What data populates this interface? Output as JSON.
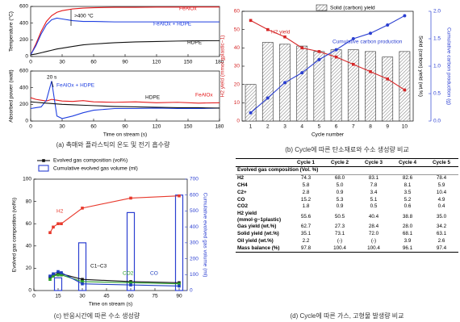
{
  "chart_data": [
    {
      "type": "line",
      "ylabel": "Temperature (°C)",
      "xlim": [
        0,
        180
      ],
      "xticks": [
        0,
        30,
        60,
        90,
        120,
        150,
        180
      ],
      "ylim": [
        0,
        600
      ],
      "yticks": [
        0,
        200,
        400,
        600
      ],
      "x": [
        0,
        5,
        10,
        15,
        20,
        25,
        30,
        40,
        50,
        60,
        80,
        100,
        120,
        140,
        160,
        180
      ],
      "series": [
        {
          "name": "FeAlOx",
          "color": "#e41a1c",
          "kind": "line",
          "values": [
            20,
            150,
            300,
            420,
            490,
            530,
            550,
            570,
            580,
            585,
            590,
            590,
            592,
            592,
            593,
            593
          ]
        },
        {
          "name": "FeAlOx + HDPE",
          "color": "#1f3fe0",
          "kind": "line",
          "values": [
            20,
            130,
            270,
            380,
            440,
            460,
            450,
            430,
            420,
            420,
            415,
            415,
            415,
            415,
            415,
            415
          ]
        },
        {
          "name": "HDPE",
          "color": "#111111",
          "kind": "line",
          "values": [
            20,
            30,
            45,
            60,
            75,
            90,
            100,
            120,
            140,
            150,
            165,
            175,
            180,
            185,
            188,
            190
          ]
        }
      ],
      "annotations": [
        ">400 °C"
      ]
    },
    {
      "type": "line",
      "ylabel": "Absorbed power (watt)",
      "xlabel": "Time on stream (s)",
      "xlim": [
        0,
        180
      ],
      "xticks": [
        0,
        30,
        60,
        90,
        120,
        150,
        180
      ],
      "ylim": [
        0,
        600
      ],
      "yticks": [
        0,
        200,
        400,
        600
      ],
      "x": [
        0,
        5,
        10,
        15,
        20,
        25,
        30,
        40,
        50,
        60,
        80,
        100,
        120,
        140,
        160,
        180
      ],
      "series": [
        {
          "name": "FeAlOx",
          "color": "#e41a1c",
          "kind": "line",
          "values": [
            280,
            260,
            250,
            240,
            260,
            250,
            240,
            235,
            245,
            230,
            225,
            230,
            220,
            225,
            215,
            220
          ]
        },
        {
          "name": "FeAlOx + HDPE",
          "color": "#1f3fe0",
          "kind": "line",
          "values": [
            150,
            160,
            170,
            250,
            480,
            60,
            30,
            60,
            100,
            130,
            150,
            150,
            155,
            150,
            150,
            155
          ]
        },
        {
          "name": "HDPE",
          "color": "#111111",
          "kind": "line",
          "values": [
            230,
            225,
            220,
            215,
            210,
            205,
            200,
            195,
            190,
            185,
            175,
            170,
            165,
            160,
            160,
            155
          ]
        }
      ],
      "annotations": [
        "20 s"
      ]
    },
    {
      "type": "combo",
      "ylabel": "H2 yield (mmol gplastic−1)",
      "y3label": "Solid (carbon) yield (wt.%)",
      "y2label": "Cumulative carbon production (g)",
      "xlabel": "Cycle number",
      "ycolor": "#d62728",
      "y2color": "#2b3fd1",
      "categories": [
        "1",
        "2",
        "3",
        "4",
        "5",
        "6",
        "7",
        "8",
        "9",
        "10"
      ],
      "ylim": [
        0,
        60
      ],
      "yticks": [
        0,
        10,
        20,
        30,
        40,
        50,
        60
      ],
      "y2lim": [
        0,
        2
      ],
      "y2ticks": [
        {
          "value": 0,
          "label": "0.0"
        },
        0.5,
        {
          "value": 1,
          "label": "1.0"
        },
        1.5,
        {
          "value": 2,
          "label": "2.0"
        }
      ],
      "series": [
        {
          "name": "Solid (carbon) yield",
          "color": "#333333",
          "kind": "bar",
          "hatch": true,
          "in_legend": true,
          "values": [
            20,
            43,
            42,
            41,
            38,
            39,
            39,
            38,
            35,
            38
          ]
        },
        {
          "name": "H2 yield",
          "color": "#d62728",
          "kind": "line",
          "marker": "square",
          "values": [
            55,
            50,
            46,
            40,
            38,
            35,
            31,
            27,
            23,
            17
          ]
        },
        {
          "name": "Cumulative carbon production",
          "color": "#2b3fd1",
          "kind": "line",
          "marker": "circle",
          "axis": "y2",
          "values": [
            0.15,
            0.42,
            0.7,
            0.88,
            1.12,
            1.3,
            1.5,
            1.6,
            1.75,
            1.92
          ]
        }
      ]
    },
    {
      "type": "combo",
      "ylabel": "Evolved gas composition (vol%)",
      "y2label": "Cumulative evolved gas volume (ml)",
      "xlabel": "Time on stream (s)",
      "y2color": "#2b3fd1",
      "legend_extra": "Evolved gas composition (vol%)",
      "xlim": [
        0,
        95
      ],
      "xticks": [
        0,
        15,
        30,
        45,
        60,
        75,
        90
      ],
      "ylim": [
        0,
        100
      ],
      "yticks": [
        0,
        20,
        40,
        60,
        80,
        100
      ],
      "y2lim": [
        0,
        700
      ],
      "y2ticks": [
        0,
        100,
        200,
        300,
        400,
        500,
        600,
        700
      ],
      "x": [
        10,
        12,
        15,
        17,
        30,
        60,
        90
      ],
      "series": [
        {
          "name": "Cumulative evolved gas volume (ml)",
          "color": "#2b3fd1",
          "kind": "bar",
          "axis": "y2",
          "in_legend": true,
          "x": [
            15,
            30,
            60,
            90
          ],
          "values": [
            80,
            300,
            490,
            600
          ]
        },
        {
          "name": "H2",
          "color": "#e8392c",
          "kind": "line",
          "marker": "square",
          "values": [
            52,
            57,
            60,
            60,
            74,
            83,
            85
          ]
        },
        {
          "name": "C1–C3",
          "color": "#111111",
          "kind": "line",
          "marker": "square",
          "values": [
            12,
            14,
            15,
            15,
            10,
            8,
            7
          ]
        },
        {
          "name": "CO2",
          "color": "#2ca02c",
          "kind": "line",
          "marker": "square",
          "values": [
            10,
            13,
            14,
            14,
            8,
            7,
            6
          ]
        },
        {
          "name": "CO",
          "color": "#1f3fbf",
          "kind": "line",
          "marker": "square",
          "values": [
            13,
            15,
            17,
            16,
            6,
            5,
            4
          ]
        }
      ]
    }
  ],
  "table": {
    "columns": [
      "Cycle 1",
      "Cycle 2",
      "Cycle 3",
      "Cycle 4",
      "Cycle 5"
    ],
    "section": "Evolved gas composition (Vol. %)",
    "rows": [
      [
        "H2",
        "74.3",
        "68.0",
        "83.1",
        "82.6",
        "78.4"
      ],
      [
        "CH4",
        "5.8",
        "5.0",
        "7.8",
        "8.1",
        "5.9"
      ],
      [
        "C2+",
        "2.8",
        "0.9",
        "3.4",
        "3.5",
        "10.4"
      ],
      [
        "CO",
        "15.2",
        "5.3",
        "5.1",
        "5.2",
        "4.9"
      ],
      [
        "CO2",
        "1.8",
        "0.9",
        "0.5",
        "0.6",
        "0.4"
      ],
      [
        "H2 yield (mmol·g−1plastic)",
        "55.6",
        "50.5",
        "40.4",
        "38.8",
        "35.0"
      ],
      [
        "Gas yield (wt.%)",
        "62.7",
        "27.3",
        "28.4",
        "28.0",
        "34.2"
      ],
      [
        "Solid yield (wt.%)",
        "35.1",
        "73.1",
        "72.0",
        "68.1",
        "63.1"
      ],
      [
        "Oil yield (wt.%)",
        "2.2",
        "(-)",
        "(-)",
        "3.9",
        "2.6"
      ],
      [
        "Mass balance (%)",
        "97.8",
        "100.4",
        "100.4",
        "96.1",
        "97.4"
      ]
    ]
  },
  "captions": [
    "(a) 촉매와 플라스틱의 온도 및 전기 흡수량",
    "(b) Cycle에 따른 탄소재료와 수소 생성량 비교",
    "(c) 반응시간에 따른 수소 생성량",
    "(d) Cycle에 따른 가스, 고형물 발생량 비교"
  ]
}
